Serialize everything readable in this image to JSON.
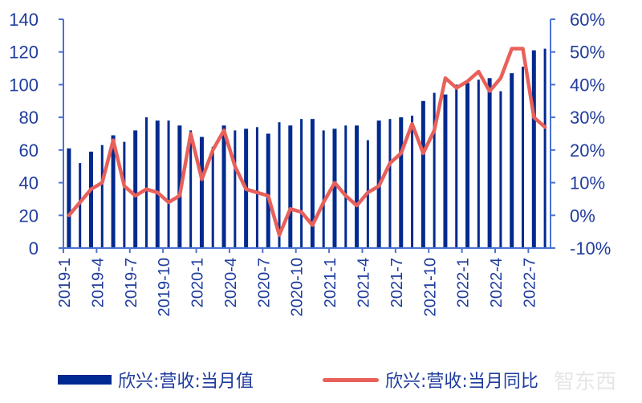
{
  "chart_data": {
    "type": "bar",
    "title": "",
    "categories": [
      "2019-1",
      "2019-2",
      "2019-3",
      "2019-4",
      "2019-5",
      "2019-6",
      "2019-7",
      "2019-8",
      "2019-9",
      "2019-10",
      "2019-11",
      "2019-12",
      "2020-1",
      "2020-2",
      "2020-3",
      "2020-4",
      "2020-5",
      "2020-6",
      "2020-7",
      "2020-8",
      "2020-9",
      "2020-10",
      "2020-11",
      "2020-12",
      "2021-1",
      "2021-2",
      "2021-3",
      "2021-4",
      "2021-5",
      "2021-6",
      "2021-7",
      "2021-8",
      "2021-9",
      "2021-10",
      "2021-11",
      "2021-12",
      "2022-1",
      "2022-2",
      "2022-3",
      "2022-4",
      "2022-5",
      "2022-6",
      "2022-7",
      "2022-8"
    ],
    "x_tick_labels": [
      "2019-1",
      "2019-4",
      "2019-7",
      "2019-10",
      "2020-1",
      "2020-4",
      "2020-7",
      "2020-10",
      "2021-1",
      "2021-4",
      "2021-7",
      "2021-10",
      "2022-1",
      "2022-4",
      "2022-7"
    ],
    "series": [
      {
        "name": "欣兴:营收:当月值",
        "type": "bar",
        "axis": "left",
        "color": "#002a8f",
        "values": [
          61,
          52,
          59,
          63,
          69,
          65,
          72,
          80,
          78,
          78,
          75,
          72,
          68,
          62,
          75,
          72,
          73,
          74,
          70,
          77,
          75,
          79,
          79,
          72,
          73,
          75,
          75,
          66,
          78,
          79,
          80,
          81,
          90,
          95,
          94,
          100,
          101,
          103,
          104,
          96,
          107,
          111,
          121,
          122
        ]
      },
      {
        "name": "欣兴:营收:当月同比",
        "type": "line",
        "axis": "right",
        "color": "#e8605a",
        "unit": "%",
        "values": [
          0,
          4,
          8,
          10,
          23,
          9,
          6,
          8,
          7,
          4,
          6,
          25,
          11,
          20,
          26,
          15,
          8,
          7,
          6,
          -6,
          2,
          1,
          -3,
          4,
          10,
          6,
          3,
          7,
          9,
          16,
          19,
          28,
          19,
          26,
          42,
          39,
          41,
          44,
          38,
          42,
          51,
          51,
          30,
          27
        ]
      }
    ],
    "xlabel": "",
    "ylabel_left": "",
    "ylabel_right": "",
    "ylim_left": [
      0,
      140
    ],
    "yticks_left": [
      "0",
      "20",
      "40",
      "60",
      "80",
      "100",
      "120",
      "140"
    ],
    "ylim_right": [
      -10,
      60
    ],
    "yticks_right": [
      "-10%",
      "0%",
      "10%",
      "20%",
      "30%",
      "40%",
      "50%",
      "60%"
    ],
    "grid": false,
    "legend_position": "bottom"
  },
  "legend": {
    "bar_label": "欣兴:营收:当月值",
    "line_label": "欣兴:营收:当月同比"
  },
  "watermark": "智东西"
}
